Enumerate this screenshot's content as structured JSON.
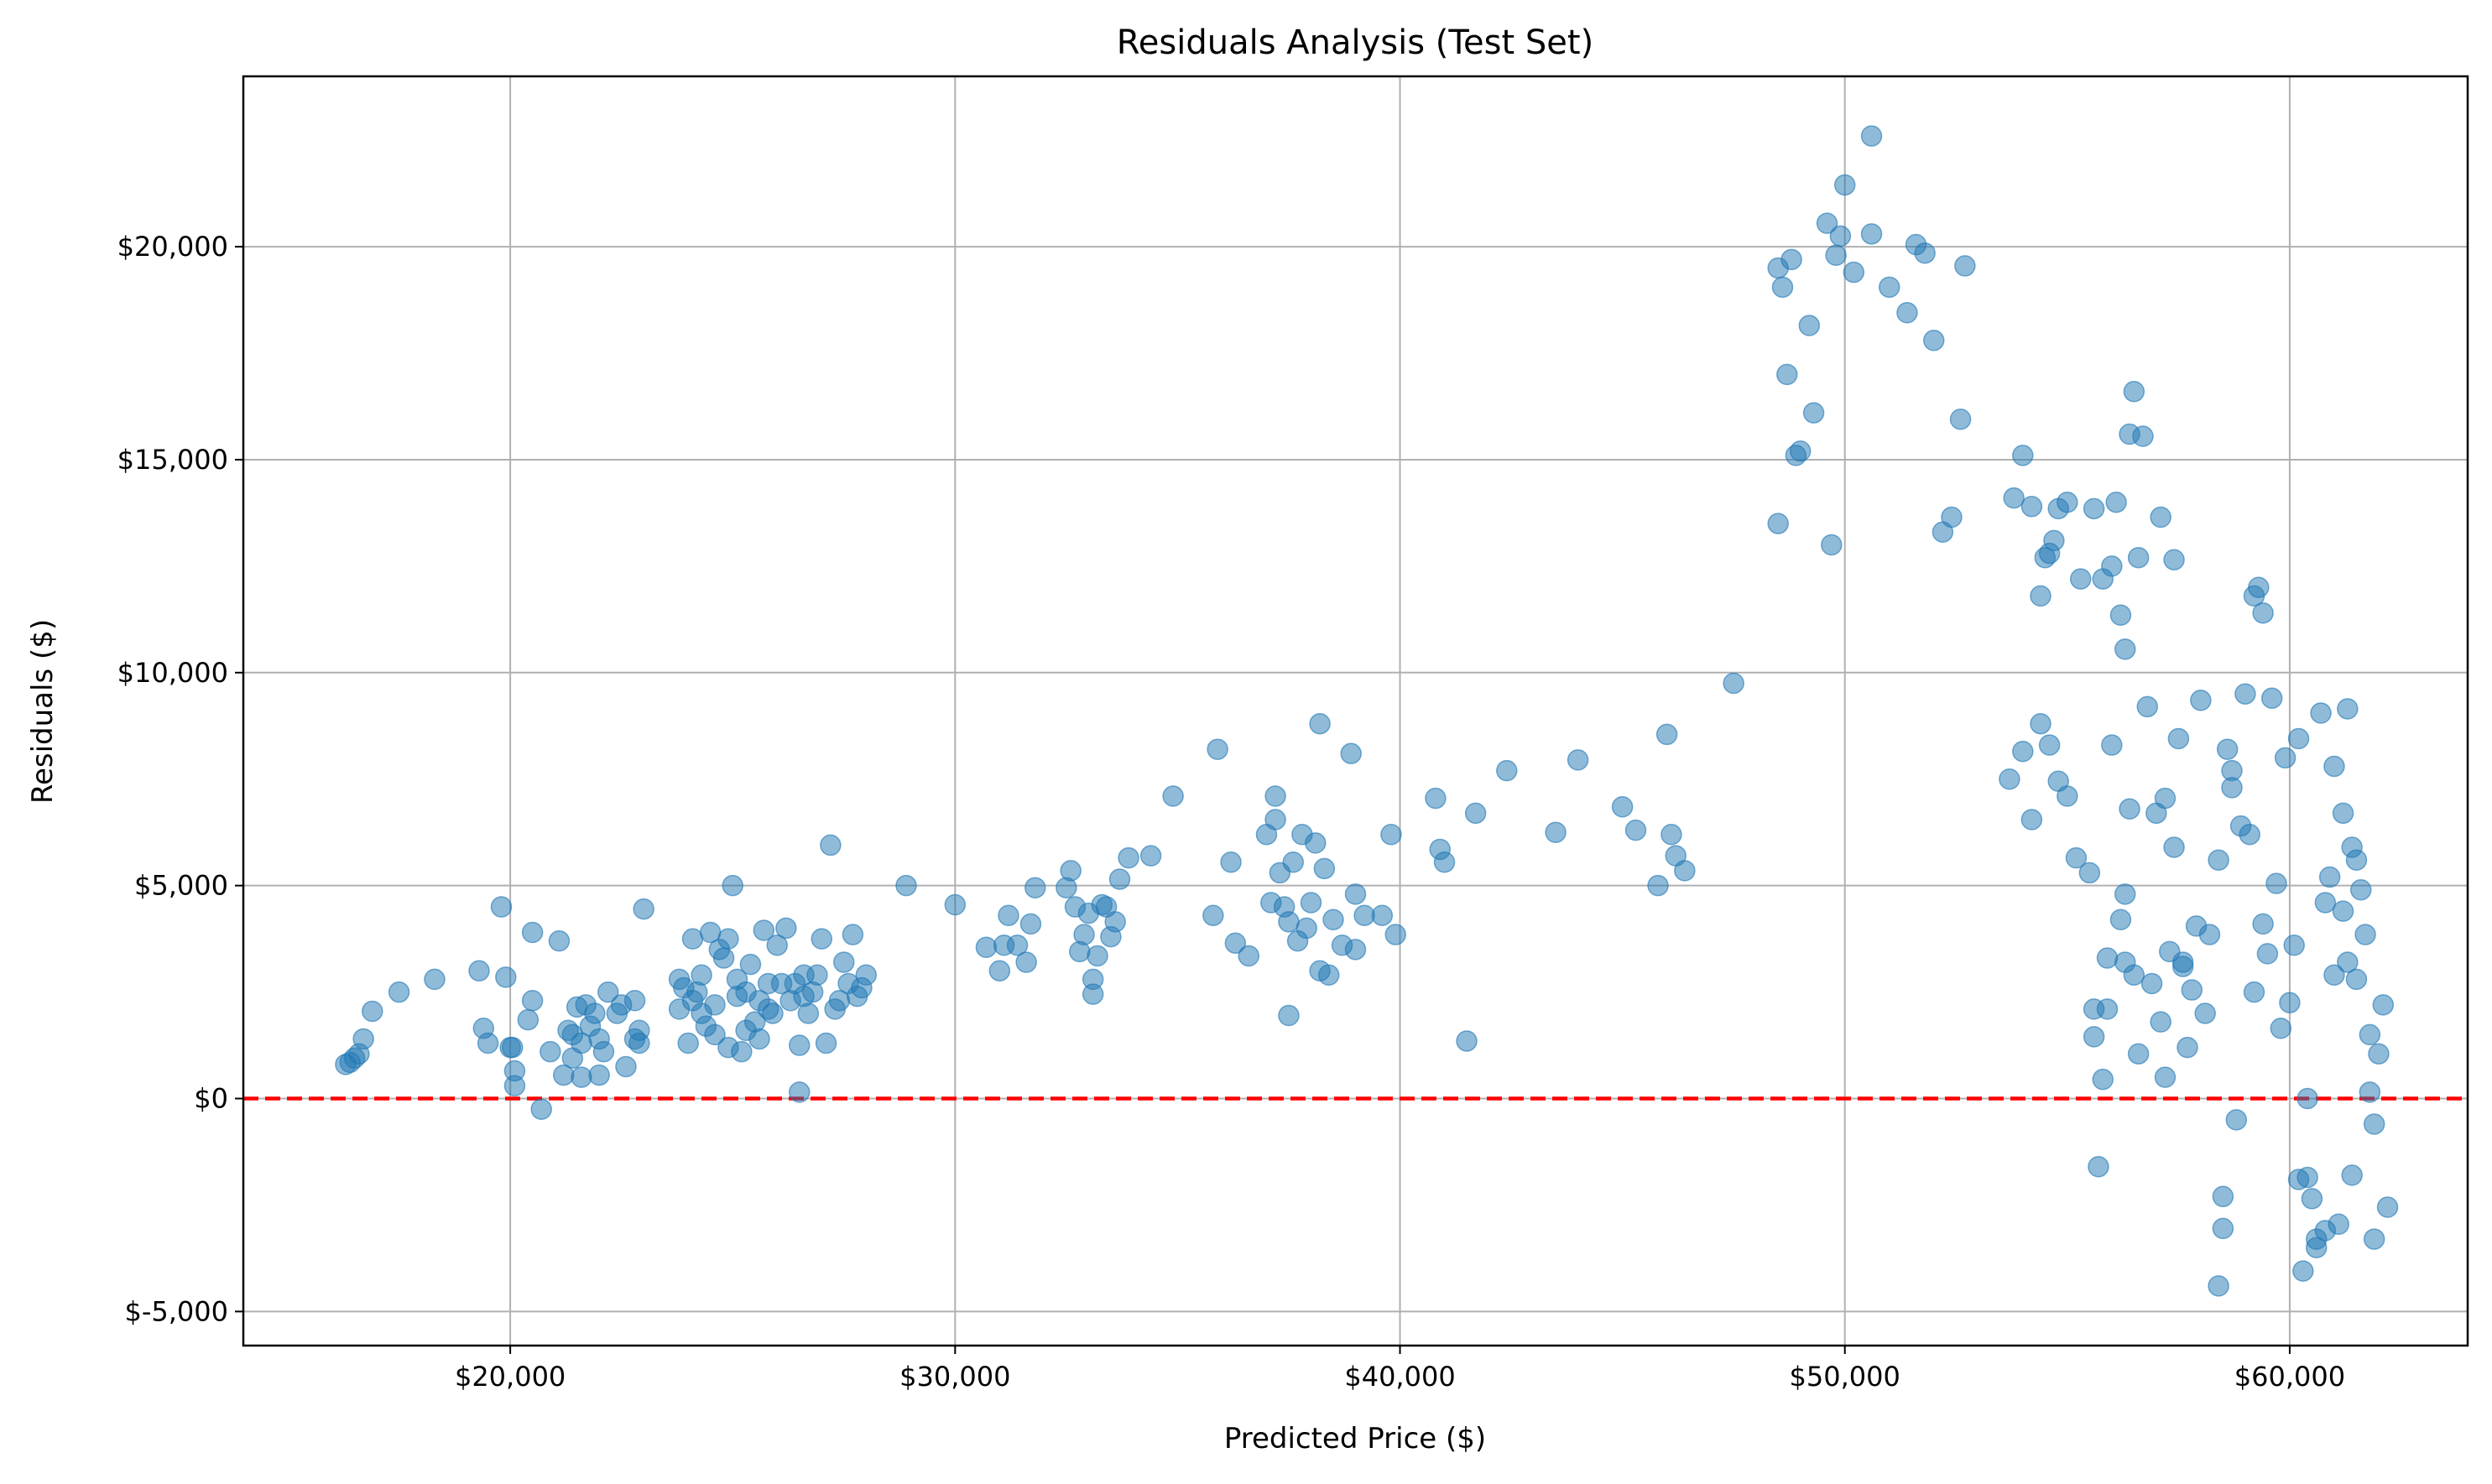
{
  "chart_data": {
    "type": "scatter",
    "title": "Residuals Analysis (Test Set)",
    "xlabel": "Predicted Price ($)",
    "ylabel": "Residuals ($)",
    "xlim": [
      14000,
      64000
    ],
    "ylim": [
      -5800,
      24000
    ],
    "xticks": [
      20000,
      30000,
      40000,
      50000,
      60000
    ],
    "xtick_labels": [
      "$20,000",
      "$30,000",
      "$40,000",
      "$50,000",
      "$60,000"
    ],
    "yticks": [
      -5000,
      0,
      5000,
      10000,
      15000,
      20000
    ],
    "ytick_labels": [
      "$-5,000",
      "$0",
      "$5,000",
      "$10,000",
      "$15,000",
      "$20,000"
    ],
    "grid": true,
    "marker_color": "#1f77b4",
    "reference_line": {
      "y": 0,
      "color": "#ff0000",
      "style": "dashed"
    },
    "points": [
      [
        16300,
        800
      ],
      [
        16400,
        850
      ],
      [
        16500,
        950
      ],
      [
        16600,
        1050
      ],
      [
        16700,
        1400
      ],
      [
        16900,
        2050
      ],
      [
        17500,
        2500
      ],
      [
        18300,
        2800
      ],
      [
        19300,
        3000
      ],
      [
        19400,
        1650
      ],
      [
        19500,
        1300
      ],
      [
        19800,
        4500
      ],
      [
        19900,
        2850
      ],
      [
        20000,
        1200
      ],
      [
        20050,
        1200
      ],
      [
        20100,
        300
      ],
      [
        20100,
        650
      ],
      [
        20400,
        1850
      ],
      [
        20500,
        2300
      ],
      [
        20500,
        3900
      ],
      [
        20700,
        -250
      ],
      [
        20900,
        1100
      ],
      [
        21100,
        3700
      ],
      [
        21200,
        550
      ],
      [
        21300,
        1600
      ],
      [
        21400,
        1500
      ],
      [
        21400,
        950
      ],
      [
        21500,
        2150
      ],
      [
        21600,
        1300
      ],
      [
        21600,
        500
      ],
      [
        21700,
        2200
      ],
      [
        21800,
        1700
      ],
      [
        21900,
        2000
      ],
      [
        22000,
        1400
      ],
      [
        22000,
        550
      ],
      [
        22100,
        1100
      ],
      [
        22200,
        2500
      ],
      [
        22400,
        2000
      ],
      [
        22500,
        2200
      ],
      [
        22600,
        750
      ],
      [
        22800,
        2300
      ],
      [
        22800,
        1400
      ],
      [
        22900,
        1300
      ],
      [
        22900,
        1600
      ],
      [
        23000,
        4450
      ],
      [
        23800,
        2800
      ],
      [
        23800,
        2100
      ],
      [
        23900,
        2600
      ],
      [
        24000,
        1300
      ],
      [
        24100,
        3750
      ],
      [
        24200,
        2500
      ],
      [
        24300,
        2900
      ],
      [
        24400,
        1700
      ],
      [
        24500,
        3900
      ],
      [
        24600,
        2200
      ],
      [
        24700,
        3500
      ],
      [
        24800,
        3300
      ],
      [
        24900,
        3750
      ],
      [
        25000,
        5000
      ],
      [
        25100,
        2400
      ],
      [
        25200,
        1100
      ],
      [
        25300,
        2500
      ],
      [
        25400,
        3150
      ],
      [
        25500,
        1800
      ],
      [
        25600,
        2300
      ],
      [
        25700,
        3950
      ],
      [
        25800,
        2700
      ],
      [
        25900,
        2000
      ],
      [
        26000,
        3600
      ],
      [
        26200,
        4000
      ],
      [
        26400,
        2700
      ],
      [
        26500,
        150
      ],
      [
        26500,
        1250
      ],
      [
        26600,
        2900
      ],
      [
        26700,
        2000
      ],
      [
        26800,
        2500
      ],
      [
        27000,
        3750
      ],
      [
        27100,
        1300
      ],
      [
        27200,
        5950
      ],
      [
        27300,
        2100
      ],
      [
        27500,
        3200
      ],
      [
        27600,
        2700
      ],
      [
        27700,
        3850
      ],
      [
        27800,
        2400
      ],
      [
        28000,
        2900
      ],
      [
        24100,
        2300
      ],
      [
        24300,
        2000
      ],
      [
        24600,
        1500
      ],
      [
        24900,
        1200
      ],
      [
        25100,
        2800
      ],
      [
        25300,
        1600
      ],
      [
        25600,
        1400
      ],
      [
        25800,
        2100
      ],
      [
        26100,
        2700
      ],
      [
        26300,
        2300
      ],
      [
        26600,
        2400
      ],
      [
        26900,
        2900
      ],
      [
        27400,
        2300
      ],
      [
        27900,
        2600
      ],
      [
        28900,
        5000
      ],
      [
        30000,
        4550
      ],
      [
        30700,
        3550
      ],
      [
        31000,
        3000
      ],
      [
        31100,
        3600
      ],
      [
        31200,
        4300
      ],
      [
        31400,
        3600
      ],
      [
        31600,
        3200
      ],
      [
        31700,
        4100
      ],
      [
        31800,
        4950
      ],
      [
        32500,
        4950
      ],
      [
        32600,
        5350
      ],
      [
        32700,
        4500
      ],
      [
        32800,
        3450
      ],
      [
        32900,
        3850
      ],
      [
        33000,
        4350
      ],
      [
        33100,
        2800
      ],
      [
        33100,
        2450
      ],
      [
        33200,
        3350
      ],
      [
        33300,
        4550
      ],
      [
        33400,
        4500
      ],
      [
        33500,
        3800
      ],
      [
        33600,
        4150
      ],
      [
        33700,
        5150
      ],
      [
        33900,
        5650
      ],
      [
        34400,
        5700
      ],
      [
        34900,
        7100
      ],
      [
        35800,
        4300
      ],
      [
        35900,
        8200
      ],
      [
        36200,
        5550
      ],
      [
        36300,
        3650
      ],
      [
        36600,
        3350
      ],
      [
        37000,
        6200
      ],
      [
        37100,
        4600
      ],
      [
        37200,
        7100
      ],
      [
        37200,
        6550
      ],
      [
        37300,
        5300
      ],
      [
        37400,
        4500
      ],
      [
        37500,
        4150
      ],
      [
        37500,
        1950
      ],
      [
        37600,
        5550
      ],
      [
        37700,
        3700
      ],
      [
        37800,
        6200
      ],
      [
        37900,
        4000
      ],
      [
        38000,
        4600
      ],
      [
        38100,
        6000
      ],
      [
        38200,
        8800
      ],
      [
        38200,
        3000
      ],
      [
        38300,
        5400
      ],
      [
        38400,
        2900
      ],
      [
        38500,
        4200
      ],
      [
        38700,
        3600
      ],
      [
        38900,
        8100
      ],
      [
        39000,
        3500
      ],
      [
        39000,
        4800
      ],
      [
        39200,
        4300
      ],
      [
        39600,
        4300
      ],
      [
        39800,
        6200
      ],
      [
        39900,
        3850
      ],
      [
        40800,
        7050
      ],
      [
        40900,
        5850
      ],
      [
        41000,
        5550
      ],
      [
        41500,
        1350
      ],
      [
        41700,
        6700
      ],
      [
        42400,
        7700
      ],
      [
        43500,
        6250
      ],
      [
        44000,
        7950
      ],
      [
        45000,
        6850
      ],
      [
        45300,
        6300
      ],
      [
        45800,
        5000
      ],
      [
        46000,
        8550
      ],
      [
        46100,
        6200
      ],
      [
        46200,
        5700
      ],
      [
        46400,
        5350
      ],
      [
        47500,
        9750
      ],
      [
        48500,
        19500
      ],
      [
        48500,
        13500
      ],
      [
        48600,
        19050
      ],
      [
        48700,
        17000
      ],
      [
        48800,
        19700
      ],
      [
        48900,
        15100
      ],
      [
        49000,
        15200
      ],
      [
        49200,
        18150
      ],
      [
        49300,
        16100
      ],
      [
        49600,
        20550
      ],
      [
        49700,
        13000
      ],
      [
        49800,
        19800
      ],
      [
        49900,
        20250
      ],
      [
        50000,
        21450
      ],
      [
        50200,
        19400
      ],
      [
        50600,
        20300
      ],
      [
        50600,
        22600
      ],
      [
        51000,
        19050
      ],
      [
        51400,
        18450
      ],
      [
        51600,
        20050
      ],
      [
        51800,
        19850
      ],
      [
        52000,
        17800
      ],
      [
        52200,
        13300
      ],
      [
        52400,
        13650
      ],
      [
        52600,
        15950
      ],
      [
        52700,
        19550
      ],
      [
        53800,
        14100
      ],
      [
        54000,
        15100
      ],
      [
        54200,
        13900
      ],
      [
        54400,
        11800
      ],
      [
        54500,
        12700
      ],
      [
        54600,
        12800
      ],
      [
        54700,
        13100
      ],
      [
        54800,
        13850
      ],
      [
        55000,
        14000
      ],
      [
        55300,
        12200
      ],
      [
        55600,
        13850
      ],
      [
        55800,
        12200
      ],
      [
        56000,
        12500
      ],
      [
        56100,
        14000
      ],
      [
        56200,
        11350
      ],
      [
        56300,
        10550
      ],
      [
        56400,
        15600
      ],
      [
        56500,
        16600
      ],
      [
        56600,
        12700
      ],
      [
        56700,
        15550
      ],
      [
        57100,
        13650
      ],
      [
        57400,
        12650
      ],
      [
        53700,
        7500
      ],
      [
        54000,
        8150
      ],
      [
        54200,
        6550
      ],
      [
        54400,
        8800
      ],
      [
        54600,
        8300
      ],
      [
        54800,
        7450
      ],
      [
        55000,
        7100
      ],
      [
        55200,
        5650
      ],
      [
        55500,
        5300
      ],
      [
        55600,
        2100
      ],
      [
        55600,
        1450
      ],
      [
        55700,
        -1600
      ],
      [
        55800,
        450
      ],
      [
        55900,
        2100
      ],
      [
        56000,
        8300
      ],
      [
        56200,
        4200
      ],
      [
        56300,
        3200
      ],
      [
        56400,
        6800
      ],
      [
        56500,
        2900
      ],
      [
        56600,
        1050
      ],
      [
        56800,
        9200
      ],
      [
        56900,
        2700
      ],
      [
        57000,
        6700
      ],
      [
        57100,
        1800
      ],
      [
        57200,
        500
      ],
      [
        57300,
        3450
      ],
      [
        57400,
        5900
      ],
      [
        57500,
        8450
      ],
      [
        57600,
        3100
      ],
      [
        57700,
        1200
      ],
      [
        57800,
        2550
      ],
      [
        57900,
        4050
      ],
      [
        58000,
        9350
      ],
      [
        58100,
        2000
      ],
      [
        58200,
        3850
      ],
      [
        58400,
        5600
      ],
      [
        58500,
        -2300
      ],
      [
        58600,
        8200
      ],
      [
        58700,
        7700
      ],
      [
        58800,
        -500
      ],
      [
        58900,
        6400
      ],
      [
        59000,
        9500
      ],
      [
        59100,
        6200
      ],
      [
        59200,
        11800
      ],
      [
        59300,
        12000
      ],
      [
        59400,
        11400
      ],
      [
        59500,
        3400
      ],
      [
        59600,
        9400
      ],
      [
        59700,
        5050
      ],
      [
        59800,
        1650
      ],
      [
        59900,
        8000
      ],
      [
        60000,
        2250
      ],
      [
        60100,
        3600
      ],
      [
        60200,
        8450
      ],
      [
        60300,
        -4050
      ],
      [
        60400,
        -1850
      ],
      [
        60500,
        -2350
      ],
      [
        60600,
        -3500
      ],
      [
        60700,
        9050
      ],
      [
        60800,
        4600
      ],
      [
        60900,
        5200
      ],
      [
        61000,
        7800
      ],
      [
        61100,
        -2950
      ],
      [
        61200,
        6700
      ],
      [
        61300,
        9150
      ],
      [
        61400,
        -1800
      ],
      [
        61500,
        5600
      ],
      [
        61600,
        4900
      ],
      [
        61700,
        3850
      ],
      [
        61800,
        1500
      ],
      [
        61900,
        -600
      ],
      [
        62000,
        1050
      ],
      [
        62100,
        2200
      ],
      [
        62200,
        -2550
      ],
      [
        61300,
        3200
      ],
      [
        61500,
        2800
      ],
      [
        61800,
        150
      ],
      [
        61900,
        -3300
      ],
      [
        60600,
        -3300
      ],
      [
        60800,
        -3100
      ],
      [
        61000,
        2900
      ],
      [
        61200,
        4400
      ],
      [
        61400,
        5900
      ],
      [
        60400,
        0
      ],
      [
        60200,
        -1900
      ],
      [
        59400,
        4100
      ],
      [
        59200,
        2500
      ],
      [
        58700,
        7300
      ],
      [
        58500,
        -3050
      ],
      [
        58400,
        -4400
      ],
      [
        57600,
        3200
      ],
      [
        57200,
        7050
      ],
      [
        56300,
        4800
      ],
      [
        55900,
        3300
      ]
    ]
  }
}
